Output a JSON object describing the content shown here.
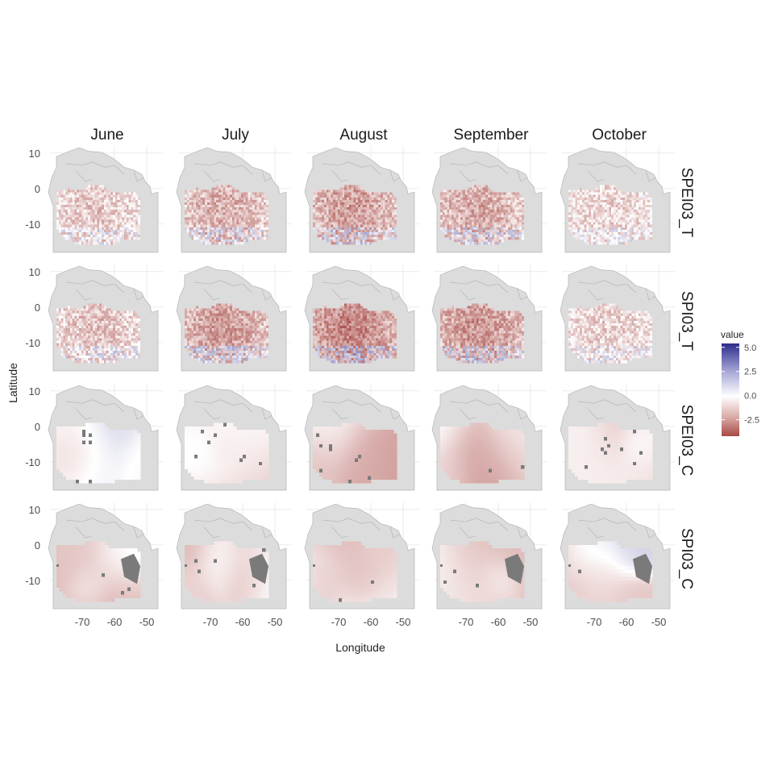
{
  "chart_data": {
    "type": "heatmap",
    "xlabel": "Longitude",
    "ylabel": "Latitude",
    "columns": [
      "June",
      "July",
      "August",
      "September",
      "October"
    ],
    "rows": [
      "SPEI03_T",
      "SPI03_T",
      "SPEI03_C",
      "SPI03_C"
    ],
    "x_ticks": [
      -70,
      -60,
      -50
    ],
    "y_ticks": [
      10,
      0,
      -10
    ],
    "x_tick_labels": [
      "-70",
      "-60",
      "-50"
    ],
    "y_tick_labels": [
      "10",
      "0",
      "-10"
    ],
    "xlim": [
      -80,
      -45
    ],
    "ylim": [
      -18,
      12
    ],
    "grid": true,
    "legend": {
      "title": "value",
      "placement": "right",
      "ticks": [
        5.0,
        2.5,
        0.0,
        -2.5
      ],
      "tick_labels": [
        "5.0",
        "2.5",
        "0.0",
        "-2.5"
      ],
      "range": [
        -4.2,
        5.4
      ],
      "colors": {
        "low": "#a84a45",
        "mid": "#ffffff",
        "high": "#2d2d8c"
      }
    },
    "background_land_color": "#dcdcdc",
    "missing_color": "#7a7a7a",
    "panel_mean_values": [
      [
        -0.8,
        -1.2,
        -1.5,
        -1.3,
        -0.6
      ],
      [
        -0.9,
        -1.5,
        -1.9,
        -1.6,
        -0.7
      ],
      [
        -0.6,
        -1.1,
        -1.4,
        -0.9,
        -0.3
      ],
      [
        -0.4,
        -1.1,
        -1.2,
        -0.9,
        -0.3
      ]
    ]
  }
}
